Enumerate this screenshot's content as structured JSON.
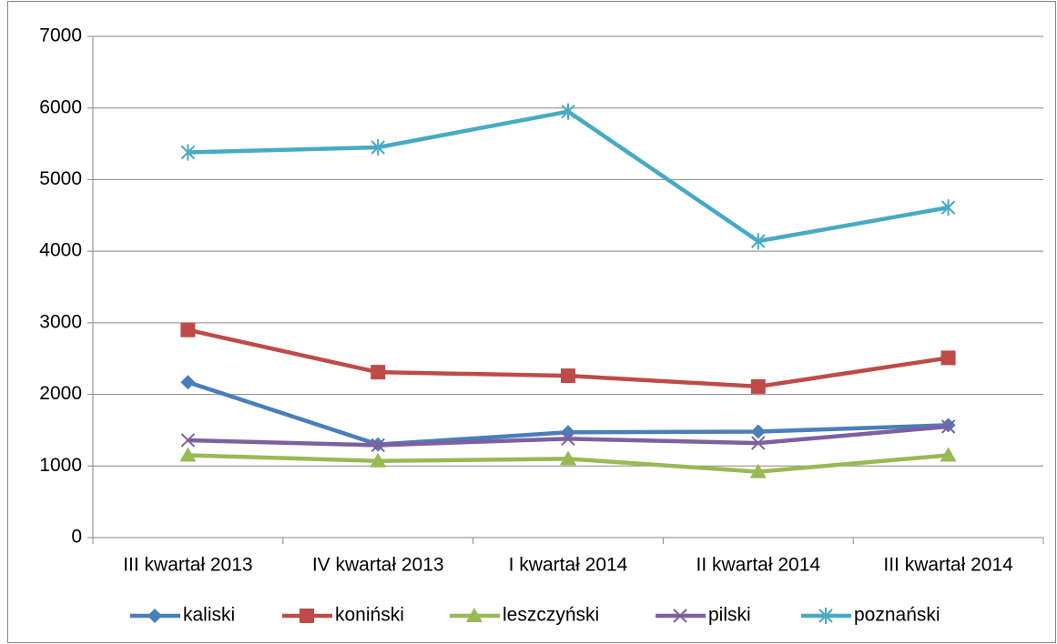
{
  "chart_data": {
    "type": "line",
    "categories": [
      "III kwartał 2013",
      "IV kwartał 2013",
      "I kwartał 2014",
      "II kwartał 2014",
      "III kwartał 2014"
    ],
    "series": [
      {
        "name": "kaliski",
        "color": "#4a7ebb",
        "marker": "diamond",
        "values": [
          2170,
          1300,
          1470,
          1480,
          1570
        ]
      },
      {
        "name": "koniński",
        "color": "#be4b48",
        "marker": "square",
        "values": [
          2900,
          2310,
          2260,
          2110,
          2510
        ]
      },
      {
        "name": "leszczyński",
        "color": "#98b954",
        "marker": "triangle",
        "values": [
          1150,
          1070,
          1100,
          920,
          1150
        ]
      },
      {
        "name": "pilski",
        "color": "#7d60a0",
        "marker": "x",
        "values": [
          1360,
          1290,
          1380,
          1320,
          1550
        ]
      },
      {
        "name": "poznański",
        "color": "#46aac5",
        "marker": "star",
        "values": [
          5380,
          5450,
          5950,
          4140,
          4610
        ]
      }
    ],
    "ylim": [
      0,
      7000
    ],
    "yticks": [
      0,
      1000,
      2000,
      3000,
      4000,
      5000,
      6000,
      7000
    ],
    "grid": true,
    "legend": "bottom"
  }
}
